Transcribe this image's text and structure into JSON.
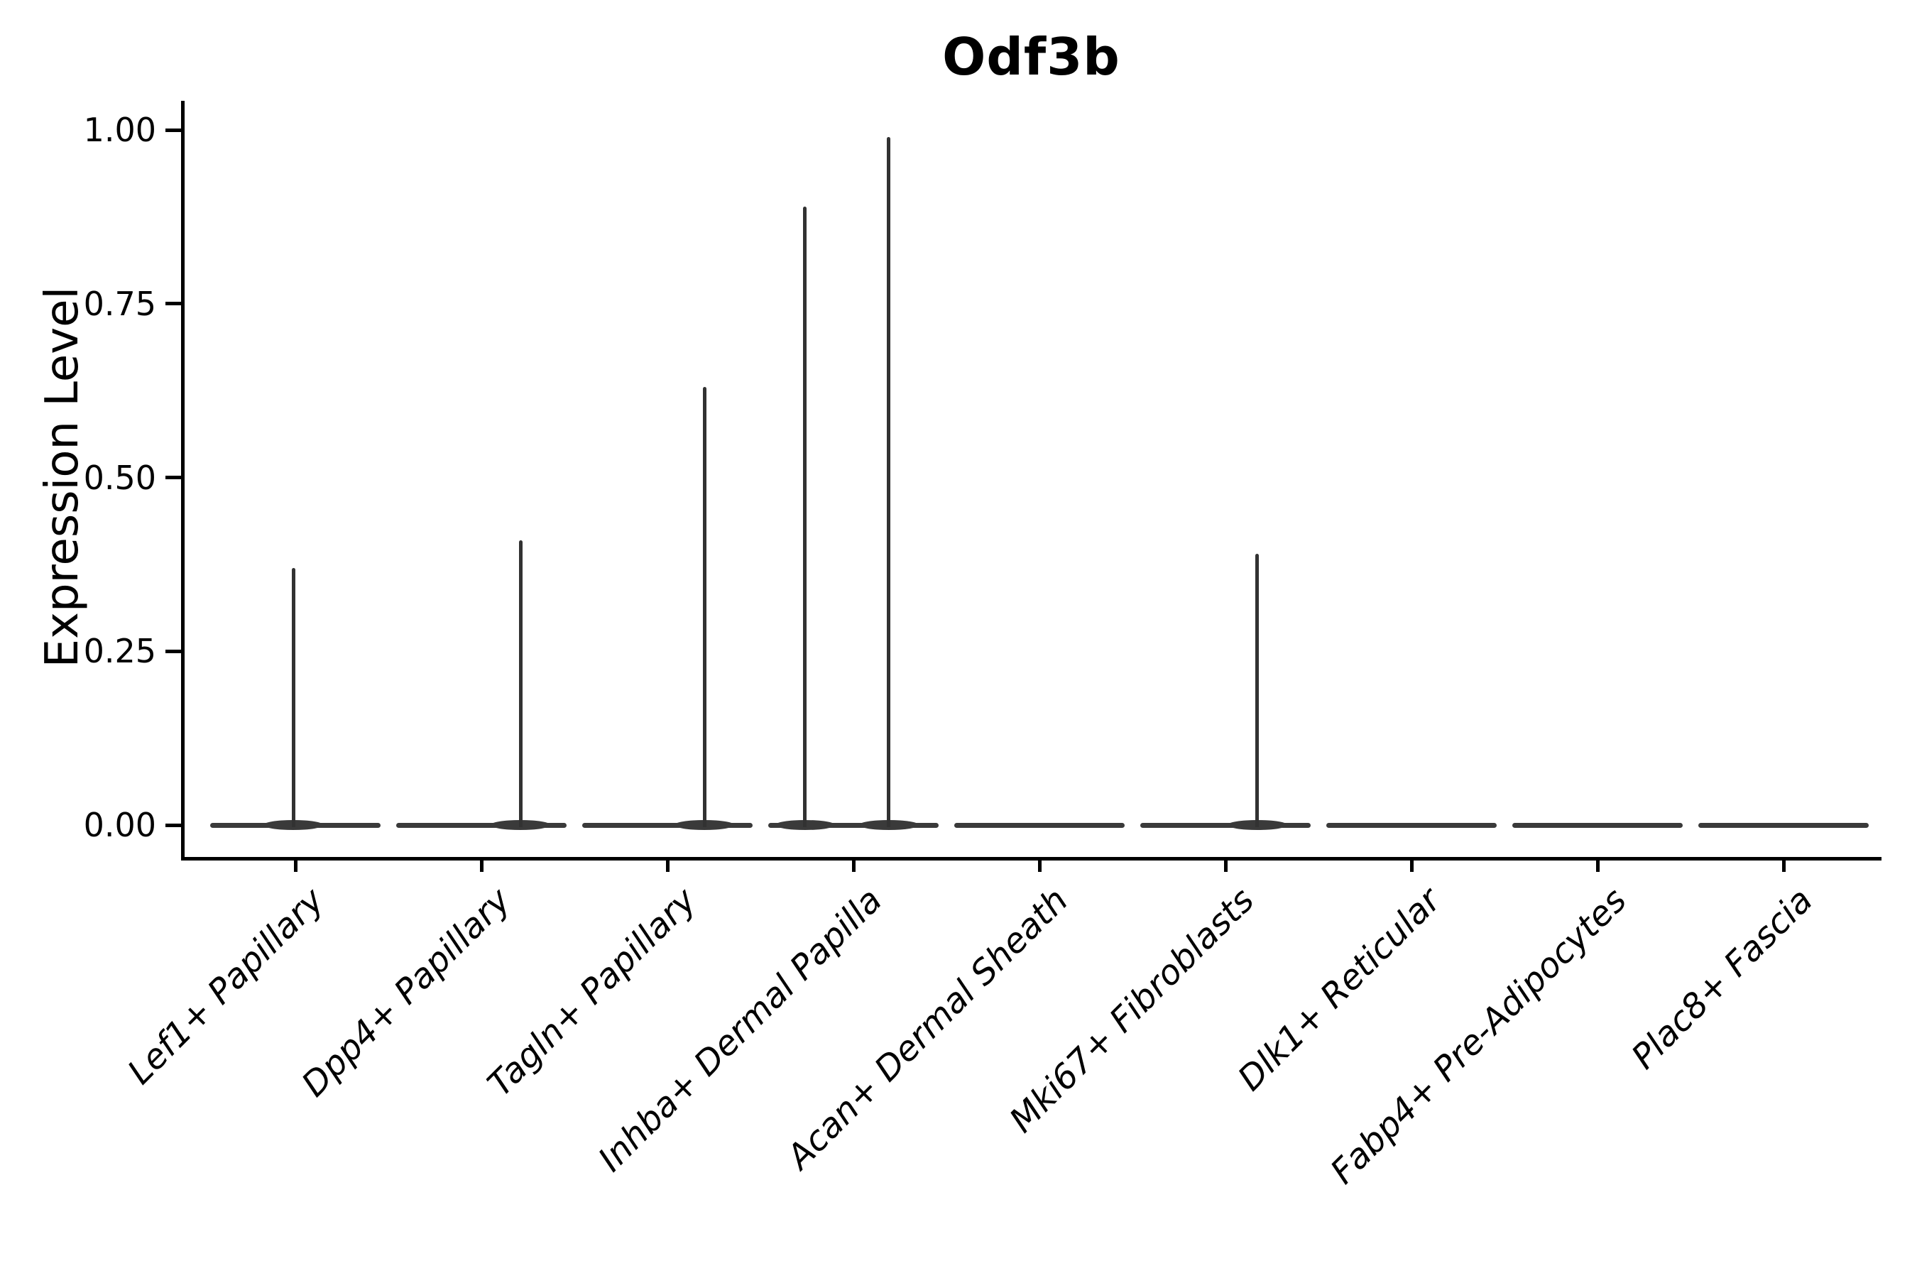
{
  "figure": {
    "title": "Odf3b",
    "background": "#ffffff"
  },
  "colors": {
    "violin_fill": "#3a3a3a",
    "spike": "#323232",
    "axis": "#000000",
    "text": "#000000"
  },
  "chart_data": {
    "type": "violin",
    "title": "Odf3b",
    "xlabel": "",
    "ylabel": "Expression Level",
    "ylim": [
      0,
      1.04
    ],
    "grid": false,
    "legend": null,
    "yticks": [
      0.0,
      0.25,
      0.5,
      0.75,
      1.0
    ],
    "ytick_labels": [
      "0.00",
      "0.25",
      "0.50",
      "0.75",
      "1.00"
    ],
    "categories": [
      "Lef1+ Papillary",
      "Dpp4+ Papillary",
      "Tagln+ Papillary",
      "Inhba+ Dermal Papilla",
      "Acan+ Dermal Sheath",
      "Mki67+ Fibroblasts",
      "Dlk1+ Reticular",
      "Fabp4+ Pre-Adipocytes",
      "Plac8+ Fascia"
    ],
    "violins": [
      {
        "category": "Lef1+ Papillary",
        "bulk_value": 0.0,
        "peaks": [
          {
            "value": 0.37,
            "offset": -0.01
          }
        ]
      },
      {
        "category": "Dpp4+ Papillary",
        "bulk_value": 0.0,
        "peaks": [
          {
            "value": 0.41,
            "offset": 0.21
          }
        ]
      },
      {
        "category": "Tagln+ Papillary",
        "bulk_value": 0.0,
        "peaks": [
          {
            "value": 0.63,
            "offset": 0.2
          }
        ]
      },
      {
        "category": "Inhba+ Dermal Papilla",
        "bulk_value": 0.0,
        "peaks": [
          {
            "value": 0.89,
            "offset": -0.26
          },
          {
            "value": 0.99,
            "offset": 0.19
          }
        ]
      },
      {
        "category": "Acan+ Dermal Sheath",
        "bulk_value": 0.0,
        "peaks": []
      },
      {
        "category": "Mki67+ Fibroblasts",
        "bulk_value": 0.0,
        "peaks": [
          {
            "value": 0.39,
            "offset": 0.17
          }
        ]
      },
      {
        "category": "Dlk1+ Reticular",
        "bulk_value": 0.0,
        "peaks": []
      },
      {
        "category": "Fabp4+ Pre-Adipocytes",
        "bulk_value": 0.0,
        "peaks": []
      },
      {
        "category": "Plac8+ Fascia",
        "bulk_value": 0.0,
        "peaks": []
      }
    ]
  }
}
